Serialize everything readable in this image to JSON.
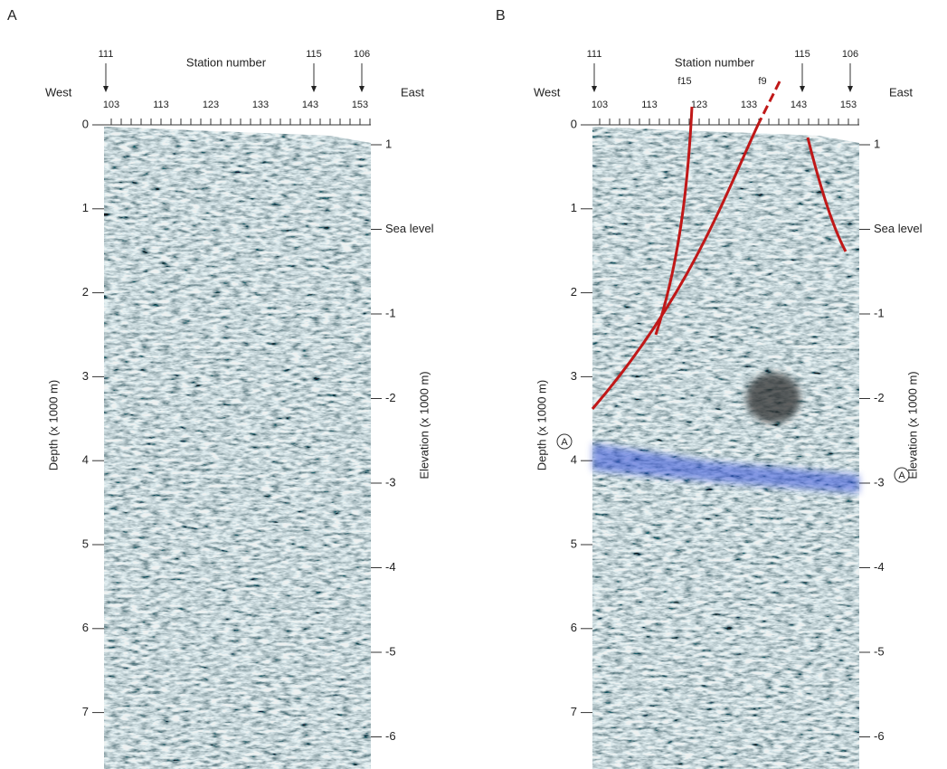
{
  "panels": [
    {
      "label": "A",
      "title": "Station number",
      "west": "West",
      "east": "East",
      "shot_labels": [
        "111",
        "115",
        "106"
      ],
      "stations": [
        "103",
        "113",
        "123",
        "133",
        "143",
        "153"
      ],
      "depth_ticks": [
        "0",
        "1",
        "2",
        "3",
        "4",
        "5",
        "6",
        "7"
      ],
      "depth_label": "Depth (x 1000 m)",
      "elevation_ticks": [
        "1",
        "Sea level",
        "-1",
        "-2",
        "-3",
        "-4",
        "-5",
        "-6"
      ],
      "elevation_label": "Elevation (x 1000 m)"
    },
    {
      "label": "B",
      "title": "Station number",
      "west": "West",
      "east": "East",
      "shot_labels": [
        "111",
        "115",
        "106"
      ],
      "stations": [
        "103",
        "113",
        "123",
        "133",
        "143",
        "153"
      ],
      "depth_ticks": [
        "0",
        "1",
        "2",
        "3",
        "4",
        "5",
        "6",
        "7"
      ],
      "depth_label": "Depth (x 1000 m)",
      "elevation_ticks": [
        "1",
        "Sea level",
        "-1",
        "-2",
        "-3",
        "-4",
        "-5",
        "-6"
      ],
      "elevation_label": "Elevation (x 1000 m)",
      "faults": [
        "f15",
        "f9"
      ],
      "markers": [
        "A",
        "A"
      ]
    }
  ]
}
